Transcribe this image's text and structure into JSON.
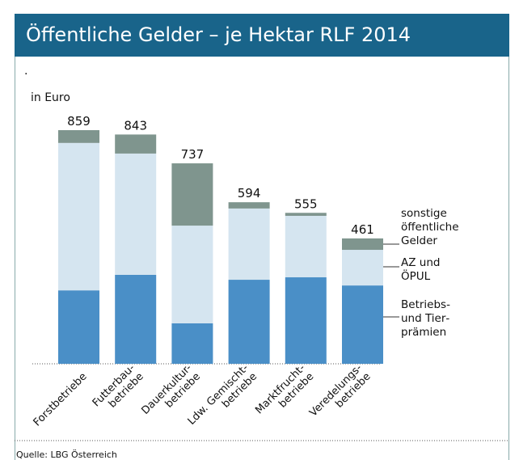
{
  "chart_data": {
    "type": "stacked_bar",
    "title": "Öffentliche Gelder – je Hektar RLF 2014",
    "note": ".",
    "unit_label": "in Euro",
    "source": "Quelle: LBG Österreich",
    "categories": [
      [
        "Forstbetriebe"
      ],
      [
        "Futterbau-",
        "betriebe"
      ],
      [
        "Dauerkultur-",
        "betriebe"
      ],
      [
        "Ldw. Gemischt-",
        "betriebe"
      ],
      [
        "Marktfrucht-",
        "betriebe"
      ],
      [
        "Veredelungs-",
        "betriebe"
      ]
    ],
    "series": [
      {
        "name": "Betriebs- und Tier­prämien",
        "color": "#4a8fc7",
        "values": [
          270,
          327,
          149,
          309,
          318,
          288
        ]
      },
      {
        "name": "AZ und ÖPUL",
        "color": "#d5e5f0",
        "values": [
          542,
          446,
          359,
          262,
          226,
          131
        ]
      },
      {
        "name": "sonstige öffentliche Gelder",
        "color": "#7f958e",
        "values": [
          47,
          70,
          229,
          23,
          11,
          42
        ]
      }
    ],
    "totals": [
      859,
      843,
      737,
      594,
      555,
      461
    ]
  }
}
